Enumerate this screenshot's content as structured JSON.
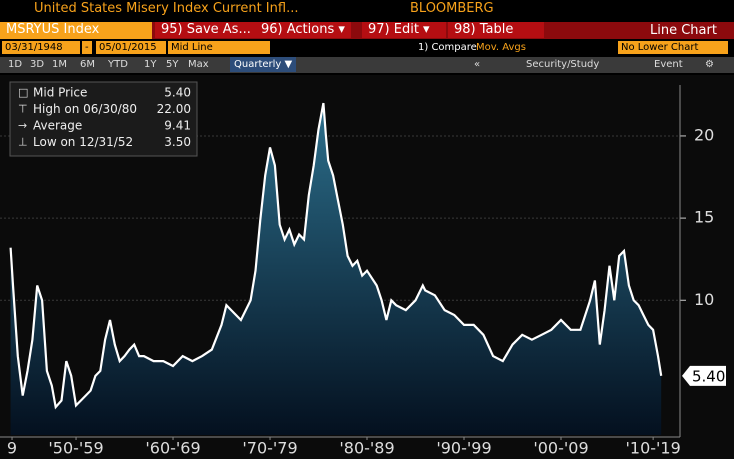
{
  "header": {
    "title": "United States Misery Index Current Infl...",
    "brand": "BLOOMBERG"
  },
  "toolbar": {
    "ticker": "MSRYUS Index",
    "buttons": [
      "95) Save As...",
      "96) Actions ▾",
      "97) Edit ▾",
      "98) Table"
    ],
    "view": "Line Chart",
    "date_from": "03/31/1948",
    "date_sep": "-",
    "date_to": "05/01/2015",
    "mode": "Mid Line",
    "compare": "1) Compare",
    "studies": "Mov. Avgs",
    "lower": "No Lower Chart",
    "ranges": [
      "1D",
      "3D",
      "1M",
      "6M",
      "YTD",
      "1Y",
      "5Y",
      "Max"
    ],
    "period": "Quarterly ▼",
    "collapse": "«",
    "security": "Security/Study",
    "event": "Event",
    "settings": "⚙"
  },
  "legend_box": [
    {
      "label": "Mid Price",
      "value": "5.40"
    },
    {
      "label": "High on 06/30/80",
      "value": "22.00"
    },
    {
      "label": "Average",
      "value": "9.41"
    },
    {
      "label": "Low on 12/31/52",
      "value": "3.50"
    }
  ],
  "chart_data": {
    "type": "area",
    "color": "#ffffff",
    "x": [
      1948.25,
      1948.5,
      1949,
      1949.5,
      1950,
      1950.5,
      1951,
      1951.5,
      1952,
      1952.5,
      1952.9,
      1953.5,
      1954,
      1954.5,
      1955,
      1955.5,
      1956.5,
      1957,
      1957.5,
      1958,
      1958.5,
      1959,
      1959.5,
      1960,
      1960.5,
      1961,
      1961.5,
      1962,
      1963,
      1964,
      1965,
      1966,
      1967,
      1968,
      1969,
      1970,
      1970.5,
      1971,
      1972,
      1973,
      1973.5,
      1974,
      1974.5,
      1975,
      1975.5,
      1976,
      1976.5,
      1977,
      1977.5,
      1978,
      1978.5,
      1979,
      1979.5,
      1980,
      1980.5,
      1980.75,
      1981,
      1981.5,
      1982,
      1982.5,
      1983,
      1983.5,
      1984,
      1984.5,
      1985,
      1986,
      1986.5,
      1987,
      1987.5,
      1988,
      1989,
      1990,
      1990.75,
      1991,
      1992,
      1993,
      1994,
      1995,
      1996,
      1997,
      1998,
      1999,
      2000,
      2001,
      2002,
      2003,
      2004,
      2005,
      2006,
      2007,
      2008,
      2008.5,
      2009,
      2009.5,
      2010,
      2010.5,
      2011,
      2011.5,
      2012,
      2012.5,
      2013,
      2013.5,
      2014,
      2014.5,
      2015,
      2015.33
    ],
    "values": [
      13.2,
      10.9,
      6.6,
      4.2,
      5.7,
      7.6,
      10.9,
      10,
      5.7,
      4.8,
      3.5,
      3.9,
      6.3,
      5.4,
      3.6,
      3.9,
      4.5,
      5.4,
      5.7,
      7.6,
      8.8,
      7.3,
      6.3,
      6.6,
      7,
      7.3,
      6.6,
      6.6,
      6.3,
      6.3,
      6,
      6.6,
      6.3,
      6.6,
      7,
      8.5,
      9.7,
      9.4,
      8.8,
      10,
      11.8,
      14.9,
      17.6,
      19.3,
      18.2,
      14.6,
      13.7,
      14.3,
      13.4,
      14,
      13.7,
      16.4,
      18.2,
      20.4,
      22,
      20.1,
      18.5,
      17.6,
      16.1,
      14.6,
      12.7,
      12.1,
      12.4,
      11.5,
      11.8,
      10.9,
      10,
      8.8,
      10,
      9.7,
      9.4,
      10,
      10.9,
      10.6,
      10.3,
      9.4,
      9.1,
      8.5,
      8.5,
      7.9,
      6.6,
      6.3,
      7.3,
      7.9,
      7.6,
      7.9,
      8.2,
      8.8,
      8.2,
      8.2,
      10,
      11.2,
      7.3,
      9.4,
      12.1,
      10,
      12.7,
      13,
      10.9,
      10,
      9.7,
      9.1,
      8.5,
      8.2,
      6.6,
      5.4
    ],
    "xlim": [
      1947.16,
      2017.27
    ],
    "ylim": [
      1.8,
      23.1
    ],
    "xticks": [
      {
        "value": 1948.4,
        "label": "9"
      },
      {
        "value": 1955,
        "label": "'50-'59"
      },
      {
        "value": 1965,
        "label": "'60-'69"
      },
      {
        "value": 1975,
        "label": "'70-'79"
      },
      {
        "value": 1985,
        "label": "'80-'89"
      },
      {
        "value": 1995,
        "label": "'90-'99"
      },
      {
        "value": 2005,
        "label": "'00-'09"
      },
      {
        "value": 2014.5,
        "label": "'10-'19"
      }
    ],
    "yticks": [
      10,
      15,
      20
    ],
    "grid": true
  }
}
